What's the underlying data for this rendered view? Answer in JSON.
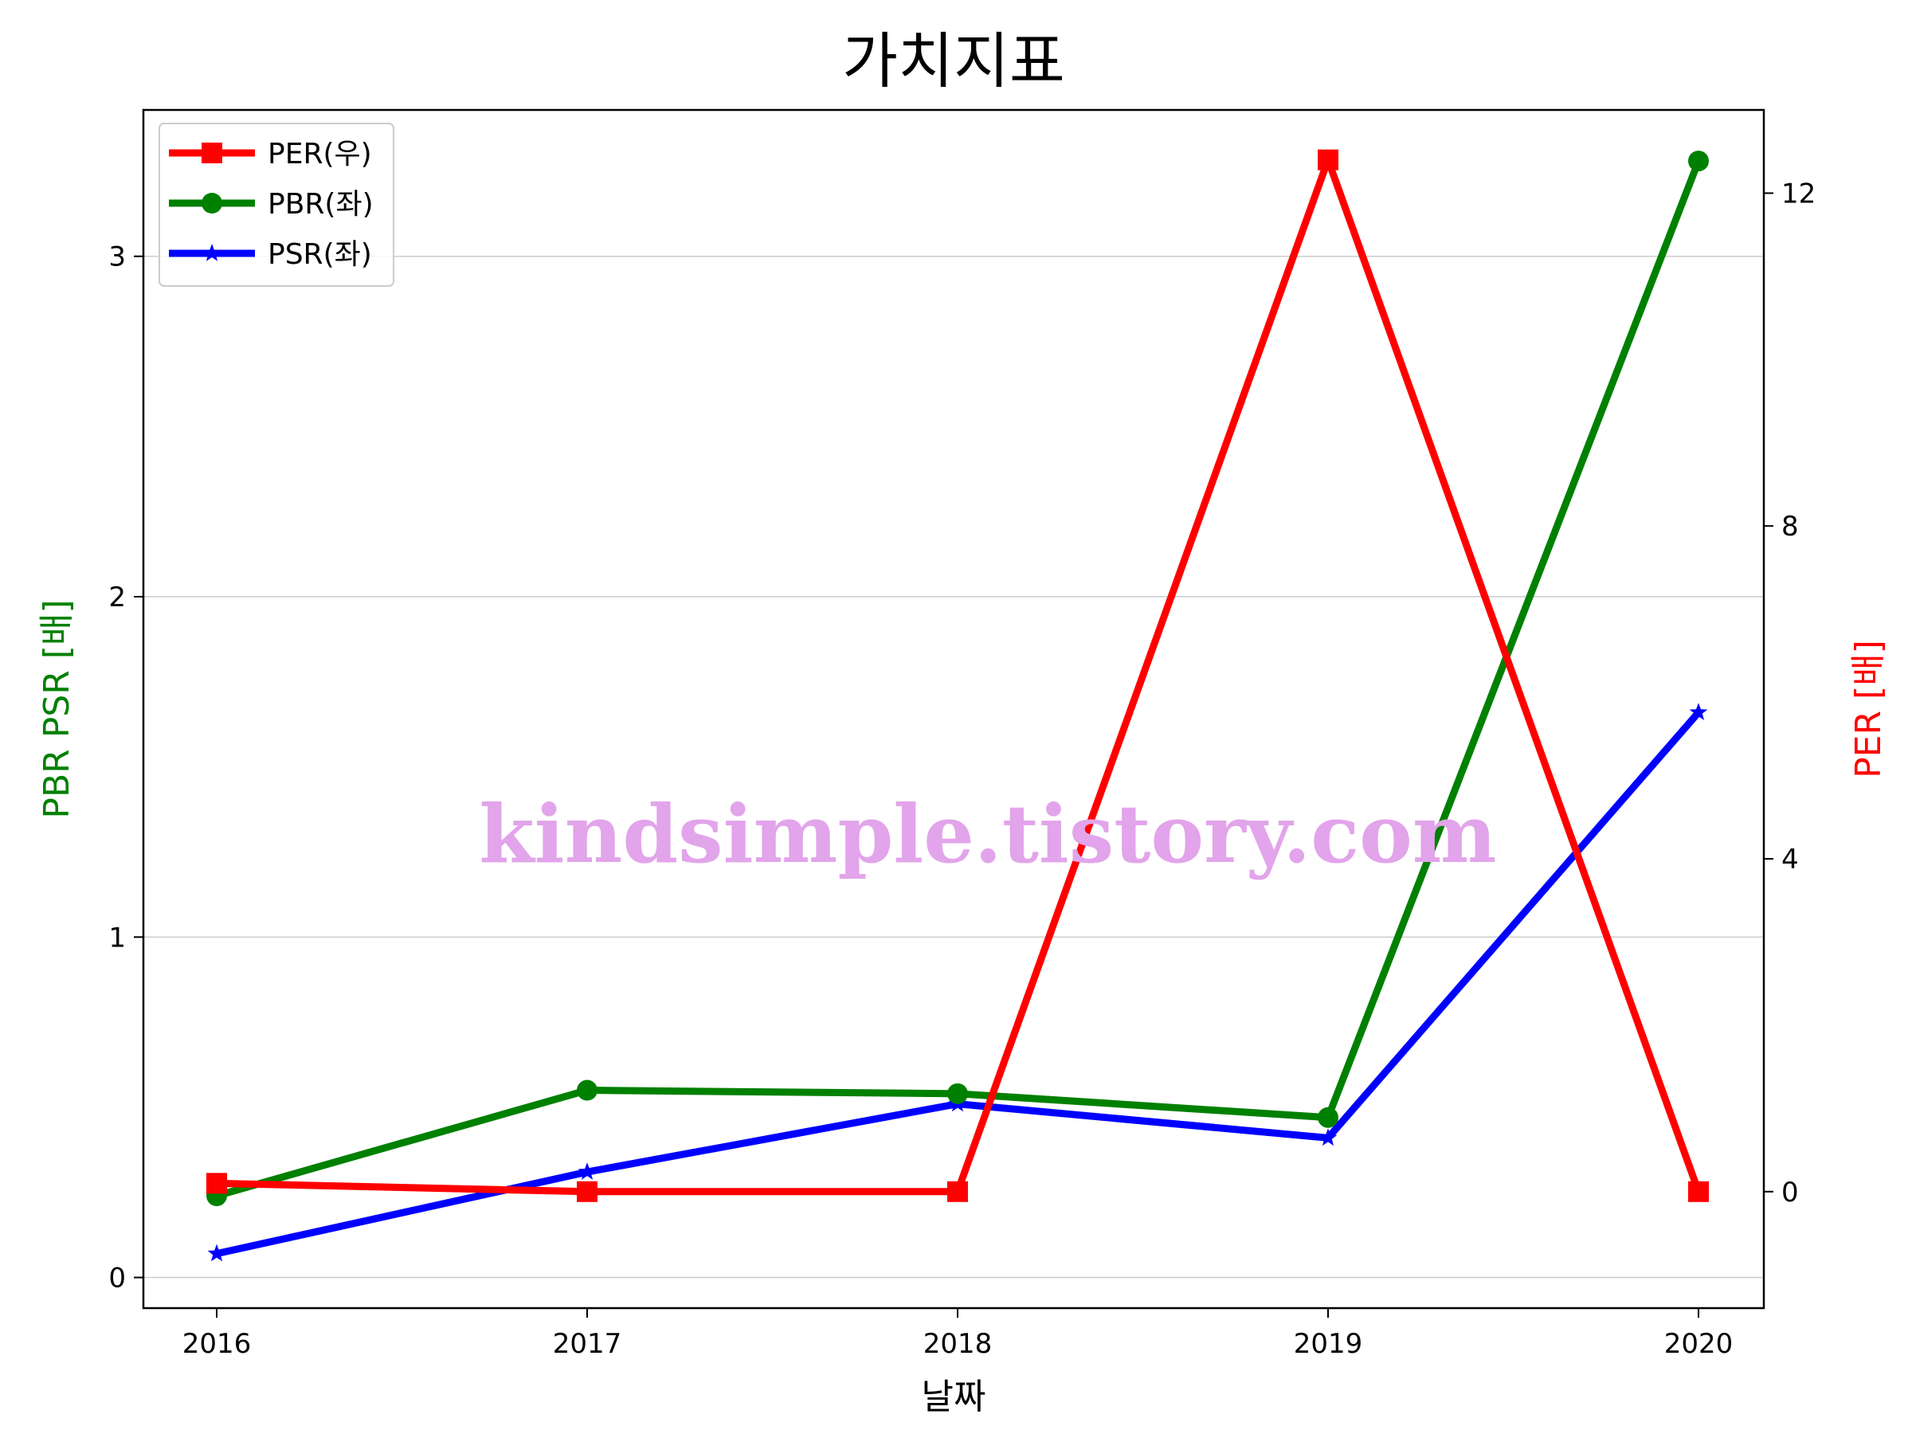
{
  "chart_data": {
    "type": "line",
    "title": "가치지표",
    "xlabel": "날짜",
    "ylabel_left": "PBR PSR [배]",
    "ylabel_right": "PER [배]",
    "categories": [
      "2016",
      "2017",
      "2018",
      "2019",
      "2020"
    ],
    "left_axis": {
      "ylim": [
        -0.09,
        3.43
      ],
      "ticks": [
        0,
        1,
        2,
        3
      ],
      "color": "#008000"
    },
    "right_axis": {
      "ylim": [
        -1.4,
        13.0
      ],
      "ticks": [
        0,
        4,
        8,
        12
      ],
      "color": "#ff0000"
    },
    "grid": "horizontal",
    "legend_position": "top-left",
    "series": [
      {
        "name": "PER(우)",
        "axis": "right",
        "marker": "square",
        "color": "#ff0000",
        "values": [
          0.1,
          0.0,
          0.0,
          12.4,
          0.0
        ]
      },
      {
        "name": "PBR(좌)",
        "axis": "left",
        "marker": "circle",
        "color": "#008000",
        "values": [
          0.24,
          0.55,
          0.54,
          0.47,
          3.28
        ]
      },
      {
        "name": "PSR(좌)",
        "axis": "left",
        "marker": "star",
        "color": "#0000ff",
        "values": [
          0.07,
          0.31,
          0.51,
          0.41,
          1.66
        ]
      }
    ]
  },
  "watermark": {
    "text": "kindsimple.tistory.com",
    "color": "#e2a4ea"
  }
}
